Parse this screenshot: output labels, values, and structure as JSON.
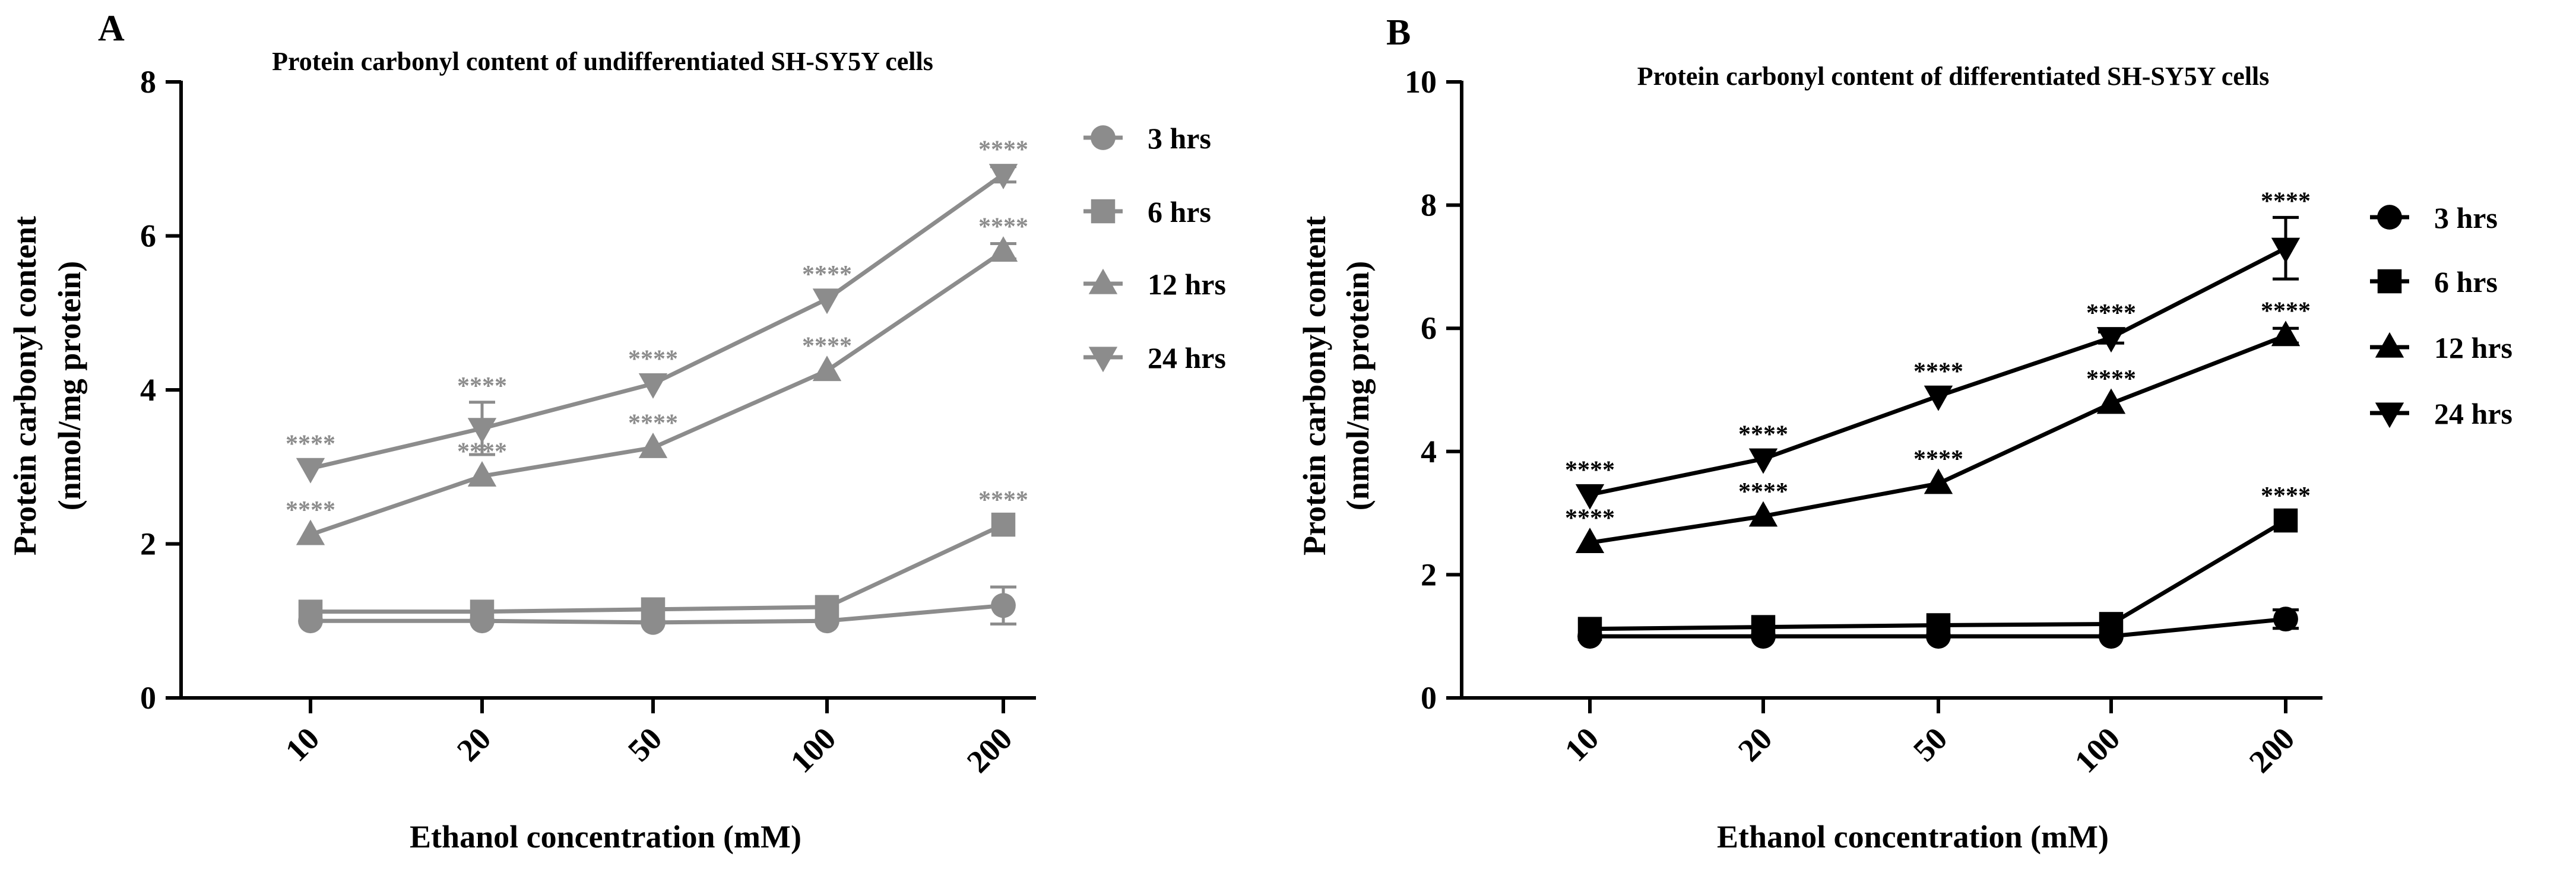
{
  "chart_data": [
    {
      "panel_label": "A",
      "type": "line",
      "title": "Protein carbonyl content of undifferentiated SH-SY5Y cells",
      "xlabel": "Ethanol concentration (mM)",
      "ylabel_line1": "Protein carbonyl content",
      "ylabel_line2": "(nmol/mg protein)",
      "categories": [
        "10",
        "20",
        "50",
        "100",
        "200"
      ],
      "ylim": [
        0,
        8
      ],
      "yticks": [
        "0",
        "2",
        "4",
        "6",
        "8"
      ],
      "color": "#8c8c8c",
      "series": [
        {
          "name": "3 hrs",
          "marker": "circle",
          "values": [
            1.0,
            1.0,
            0.98,
            1.0,
            1.2
          ],
          "errors": [
            0.03,
            0.03,
            0.03,
            0.03,
            0.24
          ]
        },
        {
          "name": "6 hrs",
          "marker": "square",
          "values": [
            1.12,
            1.12,
            1.15,
            1.18,
            2.25
          ],
          "errors": [
            0.03,
            0.03,
            0.03,
            0.03,
            0.06
          ],
          "annotations": [
            "",
            "",
            "",
            "",
            "****"
          ]
        },
        {
          "name": "12 hrs",
          "marker": "triangle-up",
          "values": [
            2.12,
            2.88,
            3.25,
            4.25,
            5.8
          ],
          "errors": [
            0.05,
            0.08,
            0.07,
            0.06,
            0.1
          ],
          "annotations": [
            "****",
            "****",
            "****",
            "****",
            "****"
          ]
        },
        {
          "name": "24 hrs",
          "marker": "triangle-down",
          "values": [
            2.98,
            3.5,
            4.08,
            5.18,
            6.8
          ],
          "errors": [
            0.05,
            0.34,
            0.07,
            0.07,
            0.1
          ],
          "annotations": [
            "****",
            "****",
            "****",
            "****",
            "****"
          ]
        }
      ]
    },
    {
      "panel_label": "B",
      "type": "line",
      "title": "Protein carbonyl content of differentiated SH-SY5Y cells",
      "xlabel": "Ethanol concentration (mM)",
      "ylabel_line1": "Protein carbonyl content",
      "ylabel_line2": "(nmol/mg protein)",
      "categories": [
        "10",
        "20",
        "50",
        "100",
        "200"
      ],
      "ylim": [
        0,
        10
      ],
      "yticks": [
        "0",
        "2",
        "4",
        "6",
        "8",
        "10"
      ],
      "color": "#000000",
      "series": [
        {
          "name": "3 hrs",
          "marker": "circle",
          "values": [
            1.0,
            1.0,
            1.0,
            1.0,
            1.28
          ],
          "errors": [
            0.03,
            0.03,
            0.03,
            0.03,
            0.15
          ]
        },
        {
          "name": "6 hrs",
          "marker": "square",
          "values": [
            1.12,
            1.15,
            1.18,
            1.2,
            2.88
          ],
          "errors": [
            0.03,
            0.03,
            0.03,
            0.03,
            0.08
          ],
          "annotations": [
            "",
            "",
            "",
            "",
            "****"
          ]
        },
        {
          "name": "12 hrs",
          "marker": "triangle-up",
          "values": [
            2.52,
            2.95,
            3.48,
            4.78,
            5.88
          ],
          "errors": [
            0.05,
            0.07,
            0.07,
            0.08,
            0.12
          ],
          "annotations": [
            "****",
            "****",
            "****",
            "****",
            "****"
          ]
        },
        {
          "name": "24 hrs",
          "marker": "triangle-down",
          "values": [
            3.3,
            3.88,
            4.9,
            5.85,
            7.3
          ],
          "errors": [
            0.05,
            0.08,
            0.08,
            0.09,
            0.5
          ],
          "annotations": [
            "****",
            "****",
            "****",
            "****",
            "****"
          ]
        }
      ]
    }
  ]
}
